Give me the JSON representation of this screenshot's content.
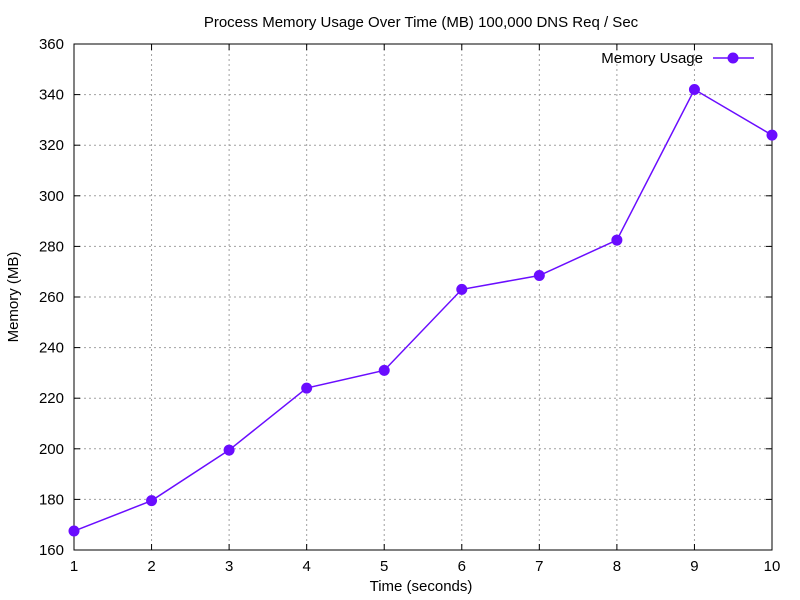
{
  "chart_data": {
    "type": "line",
    "title": "Process Memory Usage Over Time (MB) 100,000 DNS Req / Sec",
    "xlabel": "Time (seconds)",
    "ylabel": "Memory (MB)",
    "xlim": [
      1,
      10
    ],
    "ylim": [
      160,
      360
    ],
    "xticks": [
      1,
      2,
      3,
      4,
      5,
      6,
      7,
      8,
      9,
      10
    ],
    "yticks": [
      160,
      180,
      200,
      220,
      240,
      260,
      280,
      300,
      320,
      340,
      360
    ],
    "grid": true,
    "legend_position": "top-right",
    "series": [
      {
        "name": "Memory Usage",
        "color": "#6a0dff",
        "marker": "circle",
        "x": [
          1,
          2,
          3,
          4,
          5,
          6,
          7,
          8,
          9,
          10
        ],
        "y": [
          167.5,
          179.5,
          199.5,
          224,
          231,
          263,
          268.5,
          282.5,
          342,
          324
        ]
      }
    ]
  }
}
